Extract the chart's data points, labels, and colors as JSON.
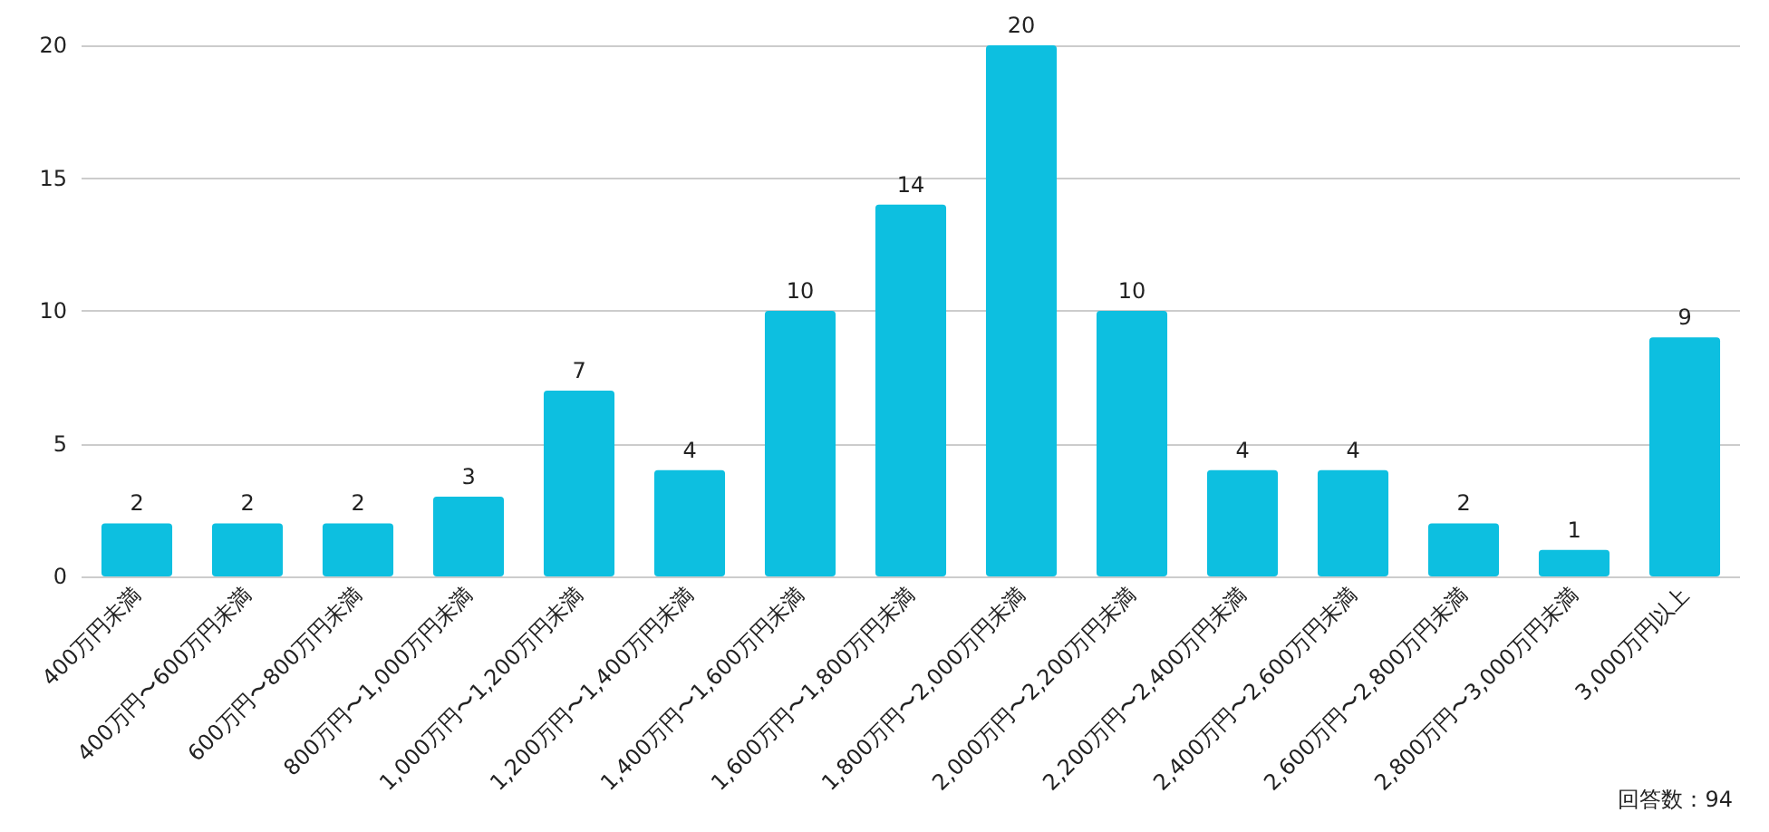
{
  "chart_data": {
    "type": "bar",
    "categories": [
      "400万円未満",
      "400万円〜600万円未満",
      "600万円〜800万円未満",
      "800万円〜1,000万円未満",
      "1,000万円〜1,200万円未満",
      "1,200万円〜1,400万円未満",
      "1,400万円〜1,600万円未満",
      "1,600万円〜1,800万円未満",
      "1,800万円〜2,000万円未満",
      "2,000万円〜2,200万円未満",
      "2,200万円〜2,400万円未満",
      "2,400万円〜2,600万円未満",
      "2,600万円〜2,800万円未満",
      "2,800万円〜3,000万円未満",
      "3,000万円以上"
    ],
    "values": [
      2,
      2,
      2,
      3,
      7,
      4,
      10,
      14,
      20,
      10,
      4,
      4,
      2,
      1,
      9
    ],
    "color": "#0dbfe0",
    "ylim": [
      0,
      20
    ],
    "yticks": [
      0,
      5,
      10,
      15,
      20
    ],
    "grid": "y",
    "data_labels": true,
    "annotations": [
      "回答数：94"
    ]
  }
}
